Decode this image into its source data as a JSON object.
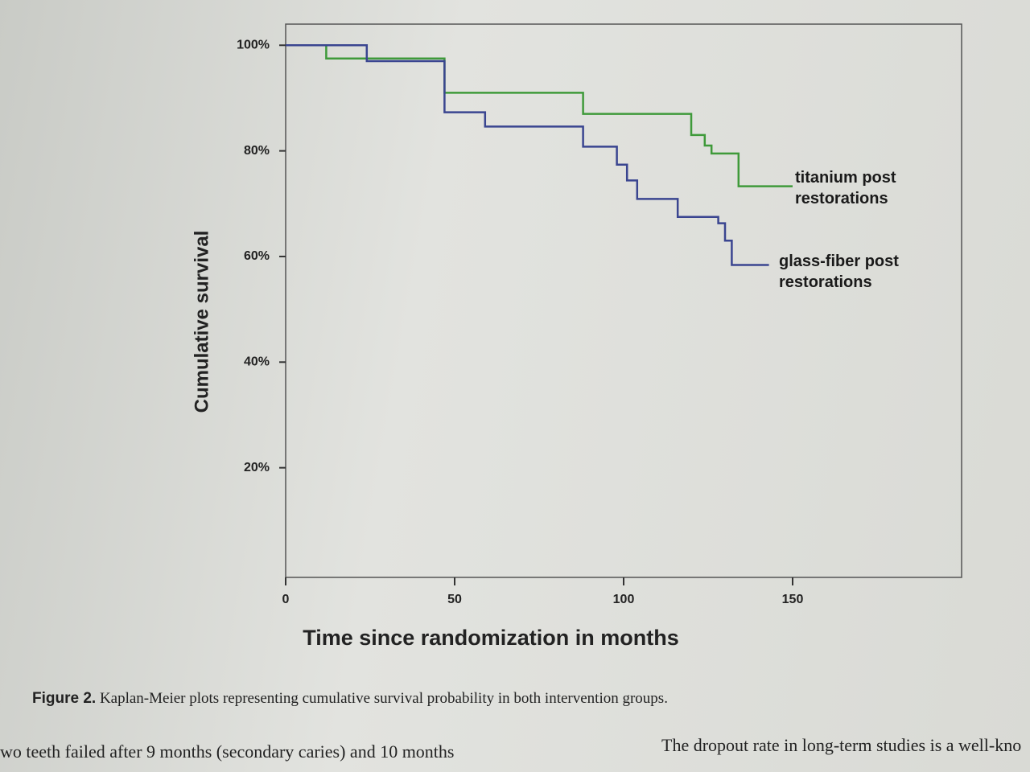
{
  "chart_data": {
    "type": "step",
    "x_label": "Time since randomization in months",
    "y_label": "Cumulative survival",
    "xlim": [
      0,
      200
    ],
    "xticks": [
      0,
      50,
      100,
      150
    ],
    "ylim": [
      0,
      104
    ],
    "yticks": [
      {
        "value": 20,
        "label": "20%"
      },
      {
        "value": 40,
        "label": "40%"
      },
      {
        "value": 60,
        "label": "60%"
      },
      {
        "value": 80,
        "label": "80%"
      },
      {
        "value": 100,
        "label": "100%"
      }
    ],
    "series": [
      {
        "name": "titanium post restorations",
        "color": "#3f9a3a",
        "x": [
          0,
          12,
          47,
          88,
          120,
          124,
          126,
          134,
          150
        ],
        "values": [
          100,
          97.5,
          91,
          87,
          83,
          81,
          79.5,
          73.3,
          73.3
        ]
      },
      {
        "name": "glass-fiber post restorations",
        "color": "#3a4590",
        "x": [
          0,
          24,
          47,
          59,
          88,
          98,
          101,
          104,
          116,
          128,
          130,
          132,
          143
        ],
        "values": [
          100,
          97,
          87.3,
          84.6,
          80.8,
          77.4,
          74.4,
          70.9,
          67.5,
          66.3,
          63,
          58.4,
          58.4
        ]
      }
    ]
  },
  "caption": {
    "label": "Figure 2.",
    "text": "Kaplan-Meier plots representing cumulative survival probability in both intervention groups."
  },
  "body_text": {
    "left": "wo teeth failed after 9 months (secondary caries) and 10 months",
    "right": "The dropout rate in long-term studies is a well-kno"
  }
}
